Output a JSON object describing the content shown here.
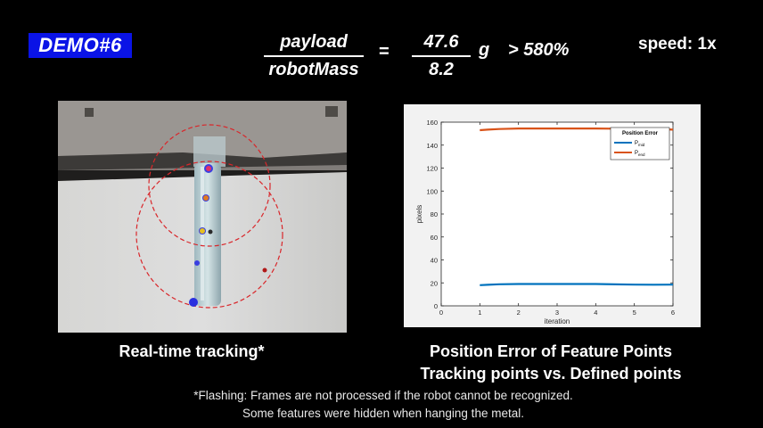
{
  "header": {
    "demo_label": "DEMO#6",
    "formula": {
      "numerator_text": "payload",
      "denominator_text": "robotMass",
      "equals": "=",
      "numerator_value": "47.6",
      "denominator_value": "8.2",
      "unit": "g",
      "ratio": "> 580%"
    },
    "speed": "speed: 1x"
  },
  "left_panel": {
    "caption": "Real-time tracking*"
  },
  "right_panel": {
    "caption_line1": "Position Error of Feature Points",
    "caption_line2": "Tracking points vs. Defined points"
  },
  "footnote": {
    "line1": "*Flashing: Frames are not processed if the robot cannot be recognized.",
    "line2": "Some features were hidden when hanging the metal."
  },
  "colors": {
    "badge": "#0a13e6",
    "series_mid": "#0072bd",
    "series_end": "#d95319",
    "tracking_circle": "#d9262a"
  },
  "chart_data": {
    "type": "line",
    "title": "",
    "xlabel": "iteration",
    "ylabel": "pixels",
    "xlim": [
      0,
      6
    ],
    "ylim": [
      0,
      160
    ],
    "xticks": [
      0,
      1,
      2,
      3,
      4,
      5,
      6
    ],
    "yticks": [
      0,
      20,
      40,
      60,
      80,
      100,
      120,
      140,
      160
    ],
    "grid": false,
    "legend": {
      "title": "Position Error",
      "placement": "top-right"
    },
    "series": [
      {
        "name": "P_mid",
        "name_main": "P",
        "name_sub": "mid",
        "color": "#0072bd",
        "x": [
          1,
          1.2,
          1.5,
          2,
          2.5,
          3,
          3.5,
          4,
          4.5,
          5,
          5.5,
          6
        ],
        "y": [
          18,
          18.3,
          18.8,
          19,
          19,
          19,
          19,
          19,
          18.7,
          18.5,
          18.4,
          18.5
        ]
      },
      {
        "name": "P_end",
        "name_main": "P",
        "name_sub": "end",
        "color": "#d95319",
        "x": [
          1,
          1.2,
          1.5,
          2,
          2.5,
          3,
          3.5,
          4,
          4.5,
          5,
          5.5,
          6
        ],
        "y": [
          153,
          153.5,
          154,
          154.5,
          154.5,
          154.5,
          154.5,
          154.5,
          154.3,
          154.2,
          154,
          153.5
        ]
      }
    ]
  }
}
